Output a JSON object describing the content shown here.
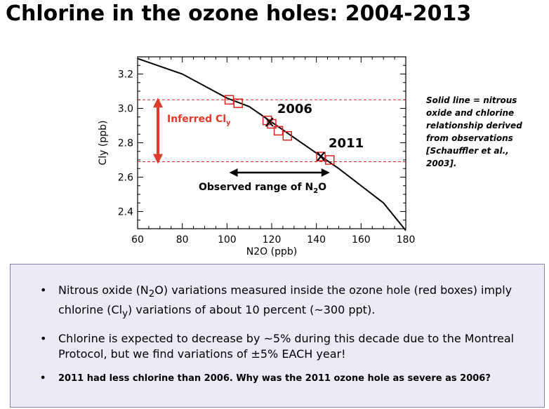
{
  "slide": {
    "title": "Chlorine in the ozone holes: 2004-2013",
    "side_note": "Solid line = nitrous oxide and chlorine relationship derived from observations [Schauffler et al., 2003].",
    "bullets": [
      {
        "parts": [
          "Nitrous oxide (N",
          "2",
          "O) variations measured inside the ozone hole (red boxes) imply chlorine (Cl",
          "y",
          ")  variations of about 10 percent (~300 ppt)."
        ]
      },
      {
        "parts": [
          "Chlorine is expected to decrease by ~5% during this decade due to the Montreal Protocol, but we find variations of ±5% EACH year!"
        ]
      },
      {
        "parts": [
          "2011 had less chlorine than 2006. Why was the 2011 ozone hole as severe as 2006?"
        ]
      }
    ]
  },
  "chart_data": {
    "type": "line",
    "xlabel": "N2O (ppb)",
    "ylabel": "Cly (ppb)",
    "xlim": [
      60,
      180
    ],
    "ylim": [
      2.3,
      3.3
    ],
    "xticks": [
      "60",
      "80",
      "100",
      "120",
      "140",
      "160",
      "180"
    ],
    "yticks": [
      "2.4",
      "2.6",
      "2.8",
      "3.0",
      "3.2"
    ],
    "ytick_values": [
      2.4,
      2.6,
      2.8,
      3.0,
      3.2
    ],
    "xtick_values": [
      60,
      80,
      100,
      120,
      140,
      160,
      180
    ],
    "curve": {
      "x": [
        60,
        80,
        90,
        100,
        110,
        120,
        130,
        140,
        150,
        160,
        170,
        175,
        180
      ],
      "y": [
        3.29,
        3.2,
        3.13,
        3.06,
        3.01,
        2.92,
        2.83,
        2.74,
        2.65,
        2.55,
        2.45,
        2.37,
        2.29
      ]
    },
    "boxes": {
      "color": "#e02020",
      "x": [
        101,
        105,
        118,
        120,
        123,
        127,
        142,
        146
      ],
      "y": [
        3.05,
        3.03,
        2.93,
        2.91,
        2.87,
        2.84,
        2.72,
        2.7
      ]
    },
    "markers": [
      {
        "label": "2006",
        "x": 119,
        "y": 2.92
      },
      {
        "label": "2011",
        "x": 142,
        "y": 2.72
      }
    ],
    "hlines": {
      "color": "#e02020",
      "values": [
        3.05,
        2.69
      ]
    },
    "annotations": {
      "inferred_label": "Inferred Cl",
      "inferred_sub": "y",
      "observed_label": "Observed range of N",
      "observed_sub": "2",
      "observed_suffix": "O",
      "observed_range": [
        101,
        146
      ]
    }
  }
}
